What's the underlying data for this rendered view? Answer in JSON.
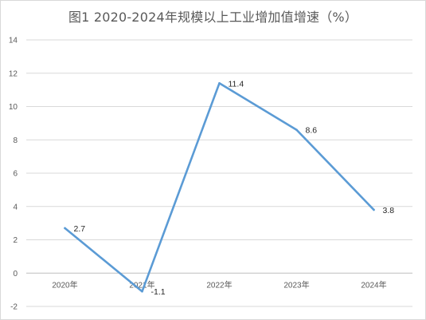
{
  "chart_data": {
    "type": "line",
    "title": "图1  2020-2024年规模以上工业增加值增速（%）",
    "categories": [
      "2020年",
      "2021年",
      "2022年",
      "2023年",
      "2024年"
    ],
    "series": [
      {
        "values": [
          2.7,
          -1.1,
          11.4,
          8.6,
          3.8
        ]
      }
    ],
    "data_labels": [
      "2.7",
      "-1.1",
      "11.4",
      "8.6",
      "3.8"
    ],
    "ylim": [
      -2,
      14
    ],
    "yticks": [
      -2,
      0,
      2,
      4,
      6,
      8,
      10,
      12,
      14
    ],
    "grid": true,
    "legend": "none",
    "colors": {
      "line": "#5b9bd5",
      "grid": "#d9d9d9",
      "axis": "#bfbfbf"
    }
  }
}
